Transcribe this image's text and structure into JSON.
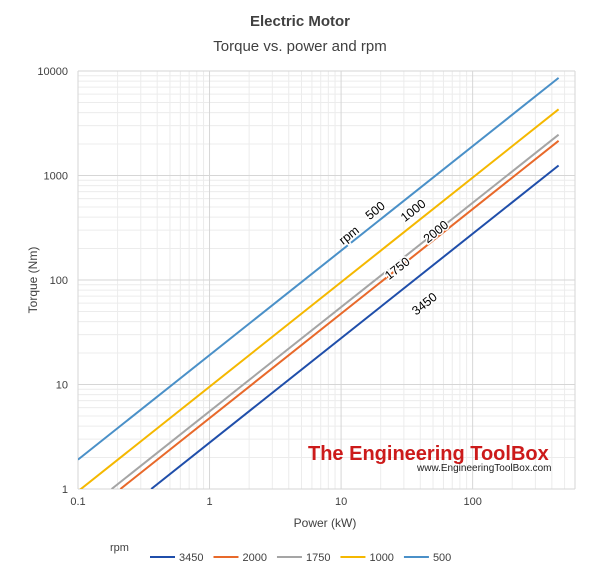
{
  "chart_data": {
    "type": "line",
    "title": "Electric Motor",
    "subtitle": "Torque vs. power and rpm",
    "xlabel": "Power (kW)",
    "ylabel": "Torque (Nm)",
    "x_scale": "log",
    "y_scale": "log",
    "xlim": [
      0.1,
      600
    ],
    "ylim": [
      1,
      10000
    ],
    "x_ticks": [
      "0.1",
      "1",
      "10",
      "100"
    ],
    "x_tick_values": [
      0.1,
      1,
      10,
      100
    ],
    "y_ticks": [
      "1",
      "10",
      "100",
      "1000",
      "10000"
    ],
    "y_tick_values": [
      1,
      10,
      100,
      1000,
      10000
    ],
    "grid": true,
    "legend_title": "rpm",
    "legend_position": "bottom",
    "series": [
      {
        "name": "3450",
        "rpm": 3450,
        "color": "#1f4eaa",
        "x": [
          0.36,
          450
        ],
        "y": [
          1,
          1246
        ]
      },
      {
        "name": "2000",
        "rpm": 2000,
        "color": "#e8692a",
        "x": [
          0.21,
          450
        ],
        "y": [
          1,
          2149
        ]
      },
      {
        "name": "1750",
        "rpm": 1750,
        "color": "#a5a5a5",
        "x": [
          0.18,
          450
        ],
        "y": [
          1,
          2456
        ]
      },
      {
        "name": "1000",
        "rpm": 1000,
        "color": "#f5b800",
        "x": [
          0.1,
          450
        ],
        "y": [
          0.95,
          4297
        ]
      },
      {
        "name": "500",
        "rpm": 500,
        "color": "#4a90c8",
        "x": [
          0.1,
          450
        ],
        "y": [
          1.91,
          8594
        ]
      }
    ],
    "annotations": [
      {
        "text": "rpm",
        "x": 12,
        "y": 250
      },
      {
        "text": "500",
        "x": 19,
        "y": 430
      },
      {
        "text": "1000",
        "x": 37,
        "y": 430
      },
      {
        "text": "2000",
        "x": 55,
        "y": 270
      },
      {
        "text": "1750",
        "x": 28,
        "y": 120
      },
      {
        "text": "3450",
        "x": 45,
        "y": 55
      }
    ]
  },
  "watermark": {
    "title": "The Engineering ToolBox",
    "url": "www.EngineeringToolBox.com"
  }
}
